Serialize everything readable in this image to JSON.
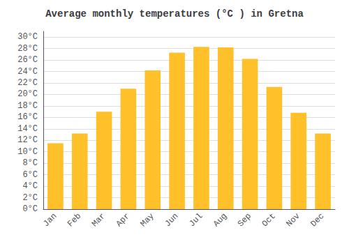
{
  "chart_data": {
    "type": "bar",
    "title": "Average monthly temperatures (°C ) in Gretna",
    "categories": [
      "Jan",
      "Feb",
      "Mar",
      "Apr",
      "May",
      "Jun",
      "Jul",
      "Aug",
      "Sep",
      "Oct",
      "Nov",
      "Dec"
    ],
    "values": [
      11.5,
      13.2,
      17.0,
      21.0,
      24.2,
      27.3,
      28.3,
      28.2,
      26.2,
      21.3,
      16.8,
      13.2
    ],
    "color": "#FFC02A",
    "ylim": [
      0,
      31
    ],
    "yticks": [
      {
        "value": 0,
        "label": "0°C"
      },
      {
        "value": 2,
        "label": "2°C"
      },
      {
        "value": 4,
        "label": "4°C"
      },
      {
        "value": 6,
        "label": "6°C"
      },
      {
        "value": 8,
        "label": "8°C"
      },
      {
        "value": 10,
        "label": "10°C"
      },
      {
        "value": 12,
        "label": "12°C"
      },
      {
        "value": 14,
        "label": "14°C"
      },
      {
        "value": 16,
        "label": "16°C"
      },
      {
        "value": 18,
        "label": "18°C"
      },
      {
        "value": 20,
        "label": "20°C"
      },
      {
        "value": 22,
        "label": "22°C"
      },
      {
        "value": 24,
        "label": "24°C"
      },
      {
        "value": 26,
        "label": "26°C"
      },
      {
        "value": 28,
        "label": "28°C"
      },
      {
        "value": 30,
        "label": "30°C"
      }
    ],
    "grid": true
  }
}
